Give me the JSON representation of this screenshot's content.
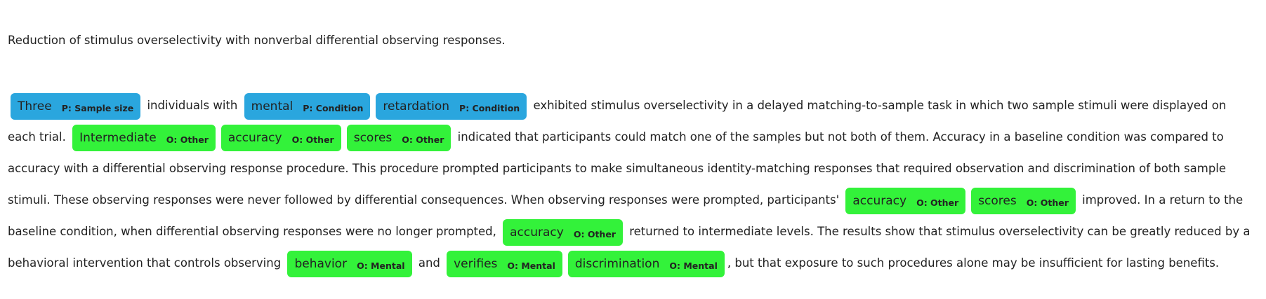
{
  "title": "Reduction of stimulus overselectivity with nonverbal differential observing responses.",
  "abstract": {
    "t1": "individuals with",
    "t2": "exhibited stimulus overselectivity in a delayed matching-to-sample task in which two sample stimuli were displayed on each trial.",
    "t3": "indicated that participants could match one of the samples but not both of them. Accuracy in a baseline condition was compared to accuracy with a differential observing response procedure. This procedure prompted participants to make simultaneous identity-matching responses that required observation and discrimination of both sample stimuli. These observing responses were never followed by differential consequences. When observing responses were prompted, participants'",
    "t4": "improved. In a return to the baseline condition, when differential observing responses were no longer prompted,",
    "t5": "returned to intermediate levels. The results show that stimulus overselectivity can be greatly reduced by a behavioral intervention that controls observing",
    "t6": "and",
    "t7": ", but that exposure to such procedures alone may be insufficient for lasting benefits."
  },
  "entities": [
    {
      "text": "Three",
      "label": "P: Sample size"
    },
    {
      "text": "mental",
      "label": "P: Condition"
    },
    {
      "text": "retardation",
      "label": "P: Condition"
    },
    {
      "text": "Intermediate",
      "label": "O: Other"
    },
    {
      "text": "accuracy",
      "label": "O: Other"
    },
    {
      "text": "scores",
      "label": "O: Other"
    },
    {
      "text": "accuracy",
      "label": "O: Other"
    },
    {
      "text": "scores",
      "label": "O: Other"
    },
    {
      "text": "accuracy",
      "label": "O: Other"
    },
    {
      "text": "behavior",
      "label": "O: Mental"
    },
    {
      "text": "verifies",
      "label": "O: Mental"
    },
    {
      "text": "discrimination",
      "label": "O: Mental"
    }
  ],
  "colors": {
    "population_tag": "#2aa6de",
    "outcome_tag": "#33f23a"
  }
}
